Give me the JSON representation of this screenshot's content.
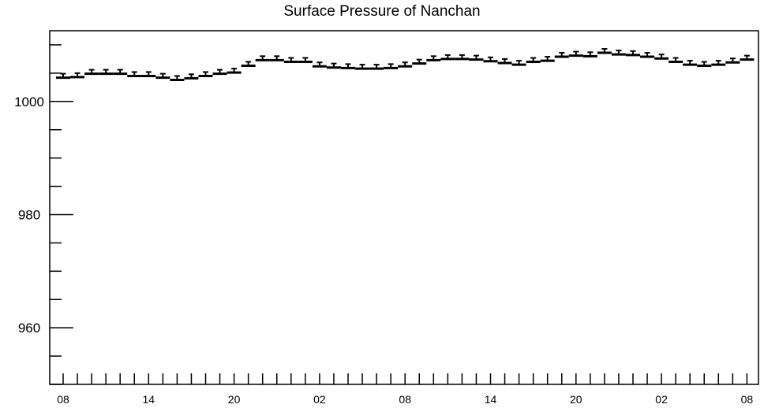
{
  "chart_data": {
    "type": "scatter",
    "title": "Surface Pressure of Nanchan",
    "xlabel": "",
    "ylabel": "",
    "ylim": [
      950,
      1012.5
    ],
    "yticks": [
      960,
      980,
      1000
    ],
    "xtick_labels": [
      "08",
      "14",
      "20",
      "02",
      "08",
      "14",
      "20",
      "02",
      "08"
    ],
    "x_hours": [
      8,
      9,
      10,
      11,
      12,
      13,
      14,
      15,
      16,
      17,
      18,
      19,
      20,
      21,
      22,
      23,
      0,
      1,
      2,
      3,
      4,
      5,
      6,
      7,
      8,
      9,
      10,
      11,
      12,
      13,
      14,
      15,
      16,
      17,
      18,
      19,
      20,
      21,
      22,
      23,
      0,
      1,
      2,
      3,
      4,
      5,
      6,
      7,
      8
    ],
    "series": [
      {
        "values": [
          1004.2,
          1004.3,
          1004.9,
          1004.9,
          1004.9,
          1004.5,
          1004.5,
          1004.2,
          1003.8,
          1004.1,
          1004.5,
          1004.9,
          1005.1,
          1006.3,
          1007.3,
          1007.3,
          1007.0,
          1007.0,
          1006.2,
          1006.0,
          1005.9,
          1005.8,
          1005.8,
          1005.9,
          1006.2,
          1006.7,
          1007.3,
          1007.5,
          1007.5,
          1007.4,
          1007.1,
          1006.8,
          1006.5,
          1007.0,
          1007.2,
          1007.9,
          1008.1,
          1008.0,
          1008.6,
          1008.3,
          1008.2,
          1007.9,
          1007.6,
          1007.0,
          1006.5,
          1006.3,
          1006.5,
          1006.9,
          1007.4
        ],
        "error": 0.7
      }
    ],
    "grid": false,
    "legend": "none"
  }
}
